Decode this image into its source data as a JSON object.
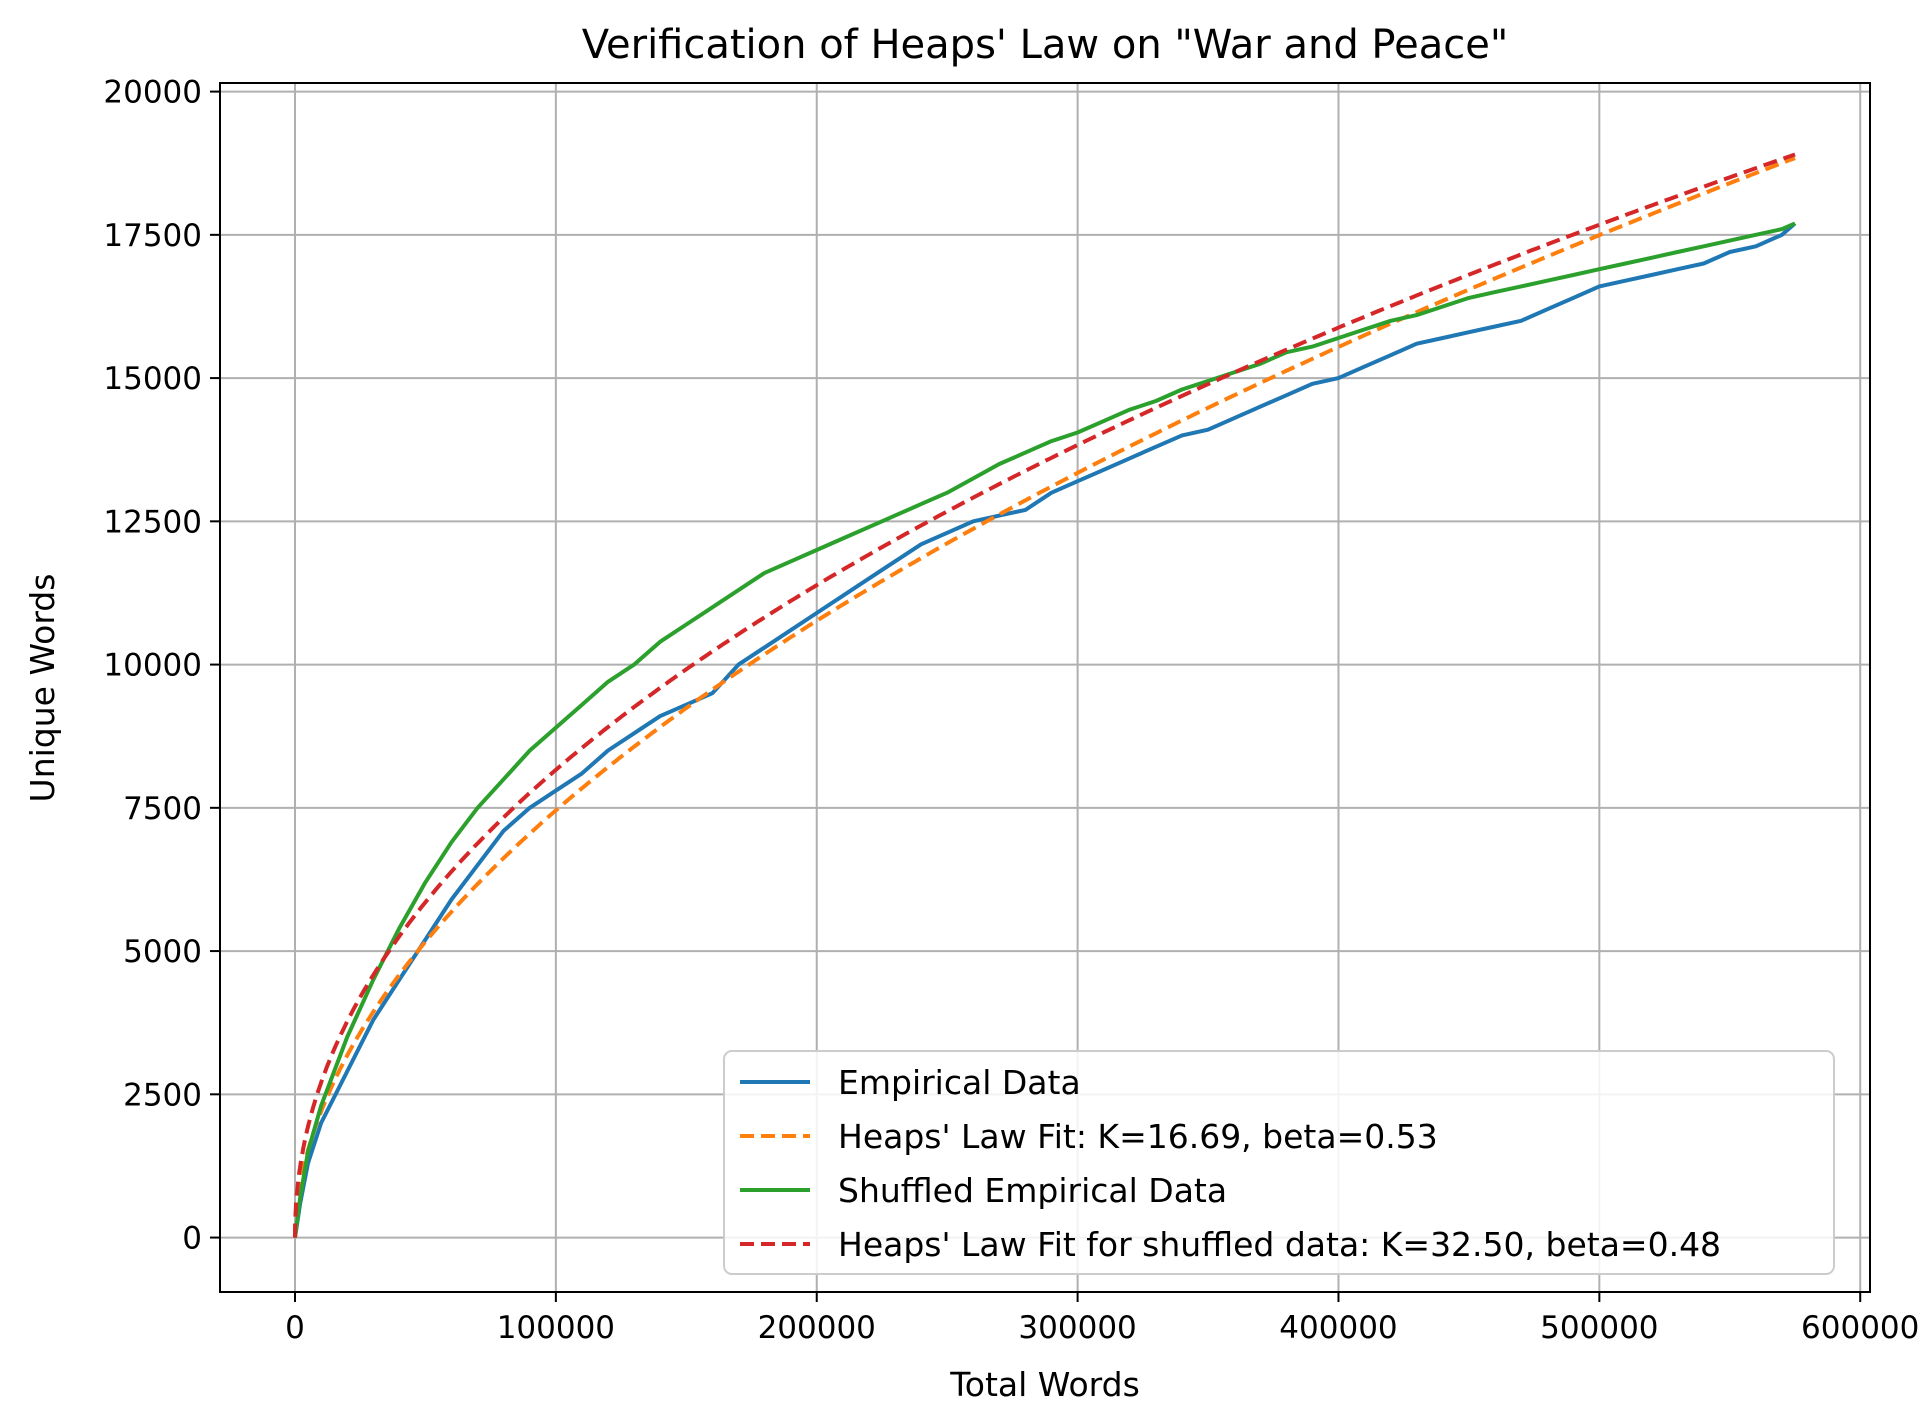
{
  "chart_data": {
    "type": "line",
    "title": "Verification of Heaps' Law on \"War and Peace\"",
    "xlabel": "Total Words",
    "ylabel": "Unique Words",
    "xlim": [
      -28750,
      603750
    ],
    "ylim": [
      -950,
      20150
    ],
    "xticks": [
      0,
      100000,
      200000,
      300000,
      400000,
      500000,
      600000
    ],
    "yticks": [
      0,
      2500,
      5000,
      7500,
      10000,
      12500,
      15000,
      17500,
      20000
    ],
    "grid": true,
    "legend_position": "lower right",
    "series": [
      {
        "name": "Empirical Data",
        "color": "#1f77b4",
        "style": "solid",
        "points": [
          [
            0,
            0
          ],
          [
            2000,
            600
          ],
          [
            5000,
            1300
          ],
          [
            10000,
            2000
          ],
          [
            20000,
            2900
          ],
          [
            30000,
            3800
          ],
          [
            40000,
            4500
          ],
          [
            50000,
            5200
          ],
          [
            60000,
            5900
          ],
          [
            70000,
            6500
          ],
          [
            80000,
            7100
          ],
          [
            90000,
            7500
          ],
          [
            100000,
            7800
          ],
          [
            110000,
            8100
          ],
          [
            120000,
            8500
          ],
          [
            130000,
            8800
          ],
          [
            140000,
            9100
          ],
          [
            150000,
            9300
          ],
          [
            160000,
            9500
          ],
          [
            170000,
            10000
          ],
          [
            180000,
            10300
          ],
          [
            190000,
            10600
          ],
          [
            200000,
            10900
          ],
          [
            210000,
            11200
          ],
          [
            220000,
            11500
          ],
          [
            230000,
            11800
          ],
          [
            240000,
            12100
          ],
          [
            250000,
            12300
          ],
          [
            260000,
            12500
          ],
          [
            270000,
            12600
          ],
          [
            280000,
            12700
          ],
          [
            290000,
            13000
          ],
          [
            300000,
            13200
          ],
          [
            310000,
            13400
          ],
          [
            320000,
            13600
          ],
          [
            330000,
            13800
          ],
          [
            340000,
            14000
          ],
          [
            350000,
            14100
          ],
          [
            360000,
            14300
          ],
          [
            370000,
            14500
          ],
          [
            380000,
            14700
          ],
          [
            390000,
            14900
          ],
          [
            400000,
            15000
          ],
          [
            410000,
            15200
          ],
          [
            420000,
            15400
          ],
          [
            430000,
            15600
          ],
          [
            440000,
            15700
          ],
          [
            450000,
            15800
          ],
          [
            460000,
            15900
          ],
          [
            470000,
            16000
          ],
          [
            480000,
            16200
          ],
          [
            490000,
            16400
          ],
          [
            500000,
            16600
          ],
          [
            510000,
            16700
          ],
          [
            520000,
            16800
          ],
          [
            530000,
            16900
          ],
          [
            540000,
            17000
          ],
          [
            550000,
            17200
          ],
          [
            560000,
            17300
          ],
          [
            570000,
            17500
          ],
          [
            575000,
            17700
          ]
        ]
      },
      {
        "name": "Heaps' Law Fit: K=16.69, beta=0.53",
        "color": "#ff7f0e",
        "style": "dashed",
        "K": 16.69,
        "beta": 0.53,
        "x_range": [
          0,
          575000
        ]
      },
      {
        "name": "Shuffled Empirical Data",
        "color": "#2ca02c",
        "style": "solid",
        "points": [
          [
            0,
            0
          ],
          [
            2000,
            700
          ],
          [
            5000,
            1500
          ],
          [
            10000,
            2300
          ],
          [
            20000,
            3500
          ],
          [
            30000,
            4500
          ],
          [
            40000,
            5400
          ],
          [
            50000,
            6200
          ],
          [
            60000,
            6900
          ],
          [
            70000,
            7500
          ],
          [
            80000,
            8000
          ],
          [
            90000,
            8500
          ],
          [
            100000,
            8900
          ],
          [
            110000,
            9300
          ],
          [
            120000,
            9700
          ],
          [
            130000,
            10000
          ],
          [
            140000,
            10400
          ],
          [
            150000,
            10700
          ],
          [
            160000,
            11000
          ],
          [
            170000,
            11300
          ],
          [
            180000,
            11600
          ],
          [
            190000,
            11800
          ],
          [
            200000,
            12000
          ],
          [
            210000,
            12200
          ],
          [
            220000,
            12400
          ],
          [
            230000,
            12600
          ],
          [
            240000,
            12800
          ],
          [
            250000,
            13000
          ],
          [
            260000,
            13250
          ],
          [
            270000,
            13500
          ],
          [
            280000,
            13700
          ],
          [
            290000,
            13900
          ],
          [
            300000,
            14050
          ],
          [
            310000,
            14250
          ],
          [
            320000,
            14450
          ],
          [
            330000,
            14600
          ],
          [
            340000,
            14800
          ],
          [
            350000,
            14950
          ],
          [
            360000,
            15100
          ],
          [
            370000,
            15250
          ],
          [
            380000,
            15450
          ],
          [
            390000,
            15550
          ],
          [
            400000,
            15700
          ],
          [
            410000,
            15850
          ],
          [
            420000,
            16000
          ],
          [
            430000,
            16100
          ],
          [
            440000,
            16250
          ],
          [
            450000,
            16400
          ],
          [
            460000,
            16500
          ],
          [
            470000,
            16600
          ],
          [
            480000,
            16700
          ],
          [
            490000,
            16800
          ],
          [
            500000,
            16900
          ],
          [
            510000,
            17000
          ],
          [
            520000,
            17100
          ],
          [
            530000,
            17200
          ],
          [
            540000,
            17300
          ],
          [
            550000,
            17400
          ],
          [
            560000,
            17500
          ],
          [
            570000,
            17600
          ],
          [
            575000,
            17700
          ]
        ]
      },
      {
        "name": "Heaps' Law Fit for shuffled data: K=32.50, beta=0.48",
        "color": "#d62728",
        "style": "dashed",
        "K": 32.5,
        "beta": 0.48,
        "x_range": [
          0,
          575000
        ]
      }
    ]
  }
}
